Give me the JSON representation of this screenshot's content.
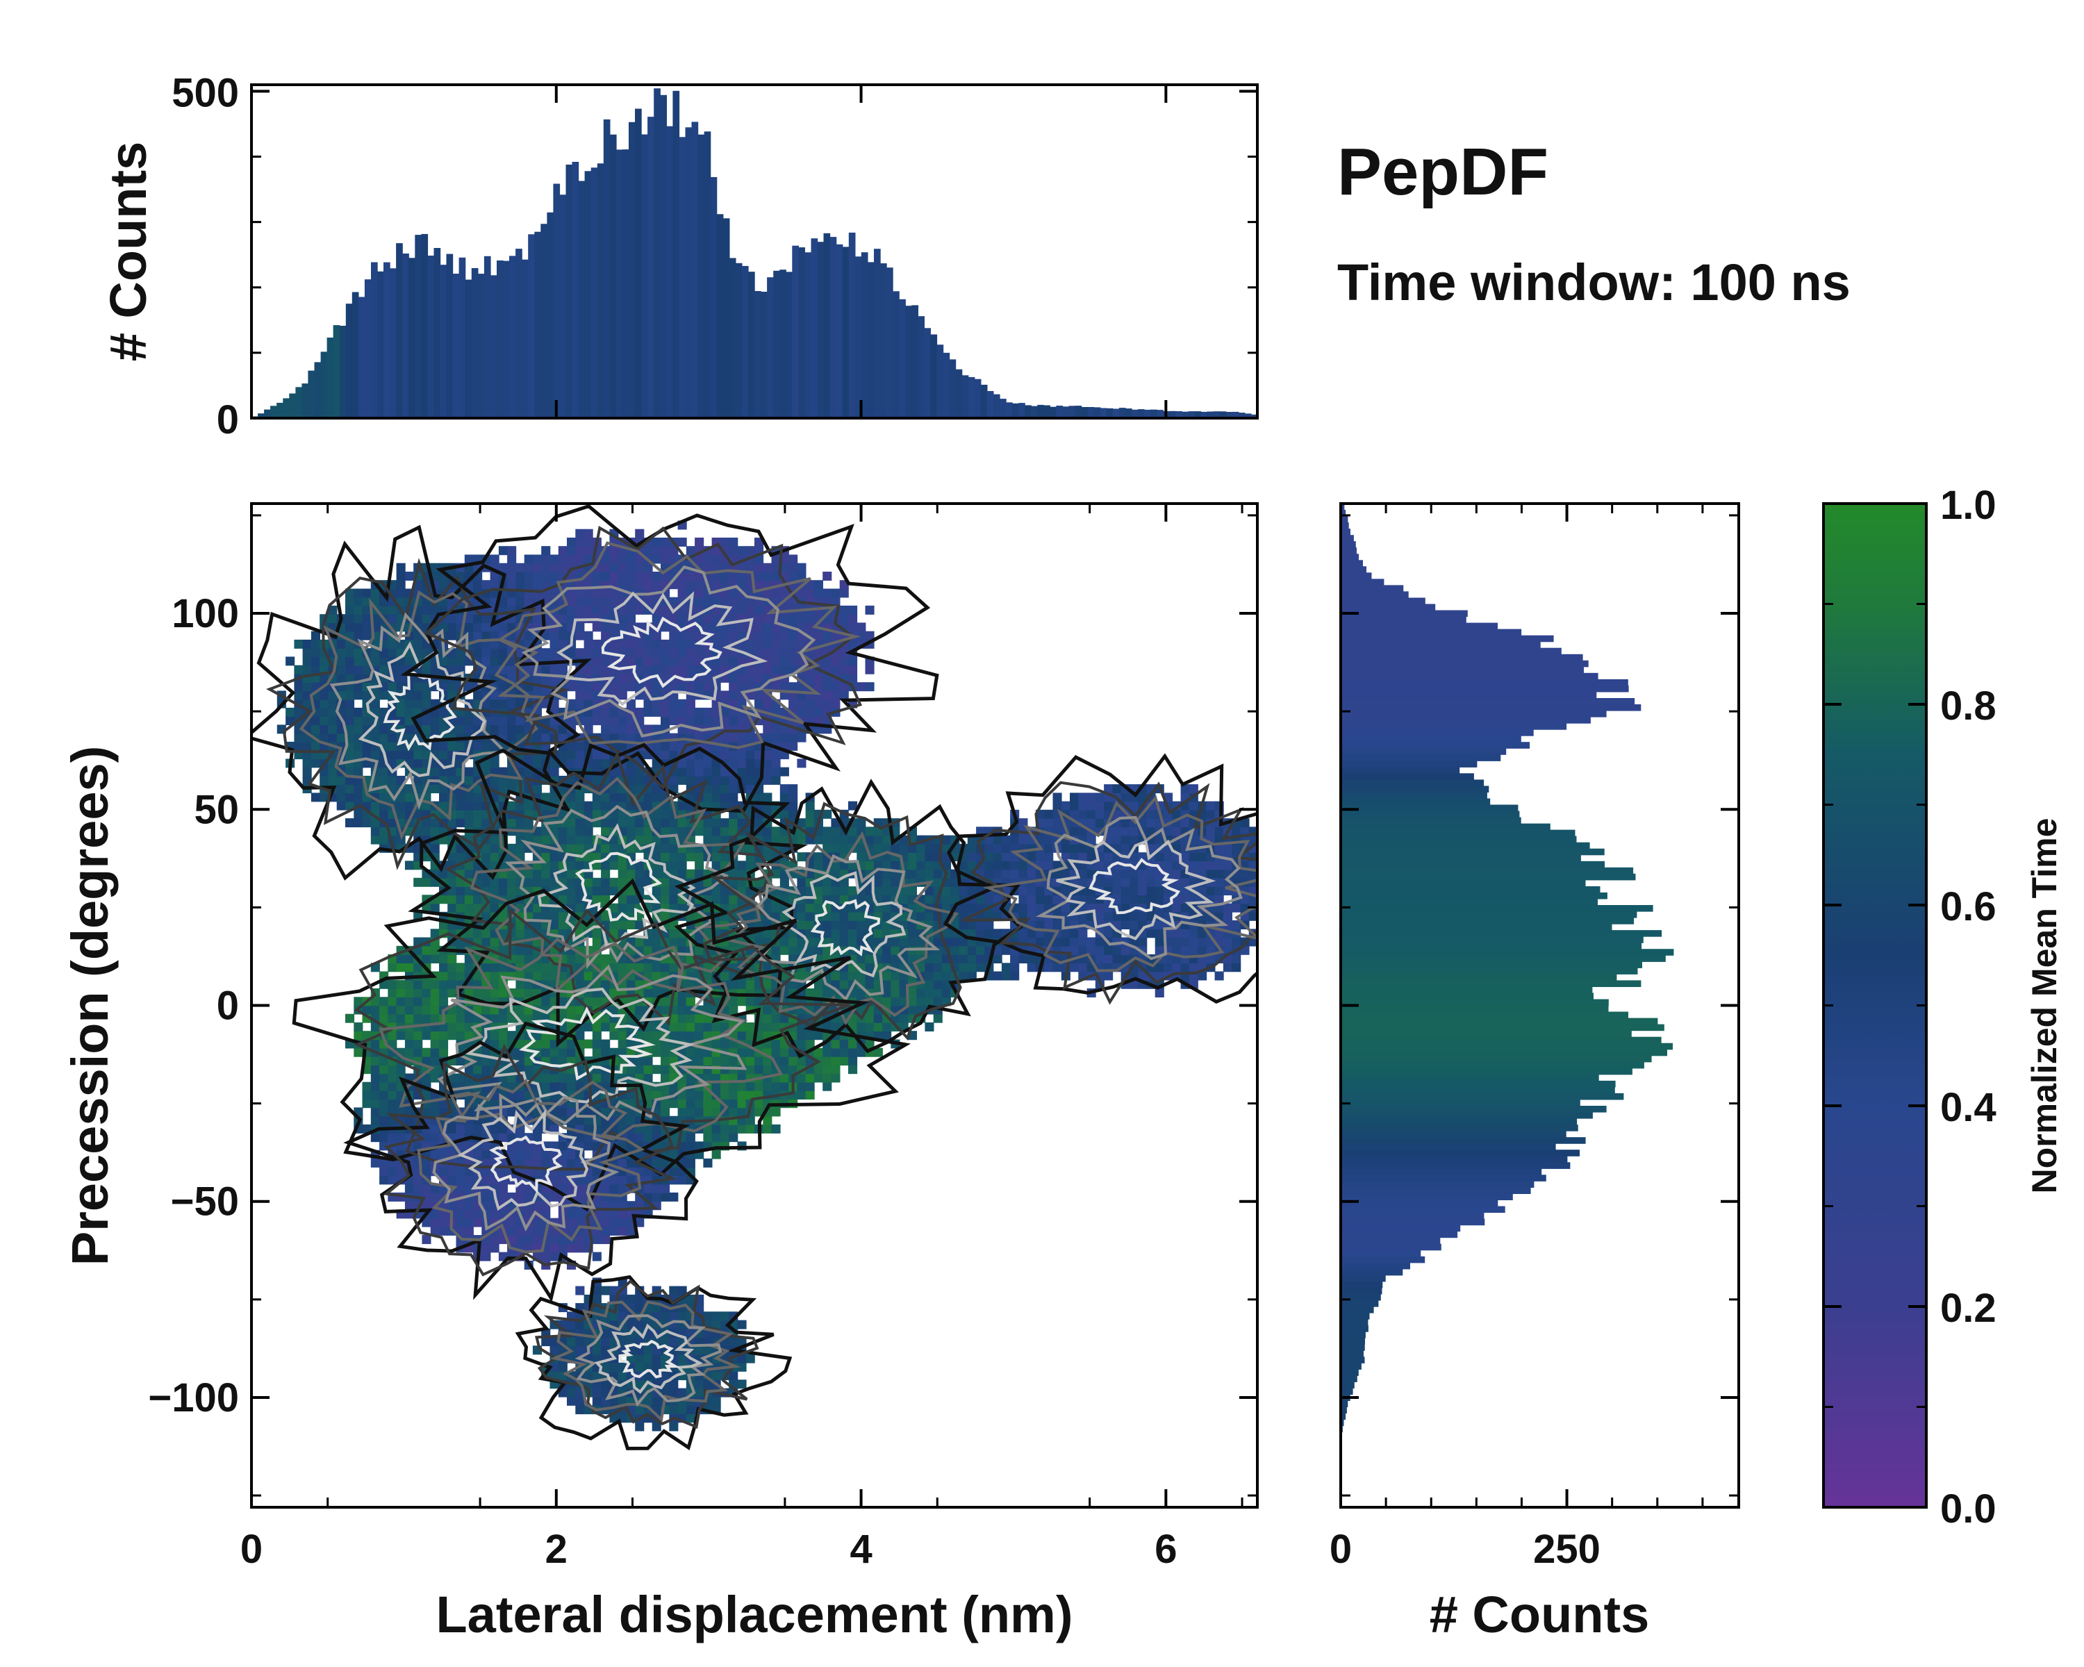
{
  "chart_data": [
    {
      "id": "main",
      "type": "heatmap",
      "title": "PepDF",
      "subtitle": "Time window: 100 ns",
      "xlabel": "Lateral displacement (nm)",
      "ylabel": "Precession (degrees)",
      "xlim": [
        0,
        6.6
      ],
      "ylim": [
        -128,
        128
      ],
      "xticks": [
        0,
        2,
        4,
        6
      ],
      "xtick_labels": [
        "0",
        "2",
        "4",
        "6"
      ],
      "yticks": [
        -100,
        -50,
        0,
        50,
        100
      ],
      "ytick_labels": [
        "−100",
        "−50",
        "0",
        "50",
        "100"
      ],
      "color_variable": "Normalized Mean Time",
      "regions": [
        {
          "name": "upper-left",
          "x": 1.1,
          "y": 75,
          "sx": 0.5,
          "sy": 20,
          "color_value": 0.65
        },
        {
          "name": "upper-center",
          "x": 2.7,
          "y": 90,
          "sx": 0.8,
          "sy": 18,
          "color_value": 0.3
        },
        {
          "name": "center",
          "x": 2.4,
          "y": 30,
          "sx": 0.6,
          "sy": 18,
          "color_value": 0.75
        },
        {
          "name": "center-right",
          "x": 3.9,
          "y": 20,
          "sx": 0.5,
          "sy": 16,
          "color_value": 0.7
        },
        {
          "name": "center-low",
          "x": 2.2,
          "y": -10,
          "sx": 0.9,
          "sy": 18,
          "color_value": 0.85
        },
        {
          "name": "lower-left",
          "x": 1.8,
          "y": -40,
          "sx": 0.5,
          "sy": 15,
          "color_value": 0.25
        },
        {
          "name": "right-lobe",
          "x": 5.8,
          "y": 30,
          "sx": 0.6,
          "sy": 15,
          "color_value": 0.45
        },
        {
          "name": "bottom-lobe",
          "x": 2.6,
          "y": -90,
          "sx": 0.4,
          "sy": 10,
          "color_value": 0.6
        }
      ]
    },
    {
      "id": "top-histogram",
      "type": "bar",
      "orientation": "vertical",
      "ylabel": "# Counts",
      "ylim": [
        0,
        510
      ],
      "yticks": [
        0,
        500
      ],
      "ytick_labels": [
        "0",
        "500"
      ],
      "x": [
        0.0,
        0.165,
        0.33,
        0.495,
        0.66,
        0.825,
        0.99,
        1.155,
        1.32,
        1.485,
        1.65,
        1.815,
        1.98,
        2.145,
        2.31,
        2.475,
        2.64,
        2.805,
        2.97,
        3.135,
        3.3,
        3.465,
        3.63,
        3.795,
        3.96,
        4.125,
        4.29,
        4.455,
        4.62,
        4.785,
        4.95,
        5.115,
        5.28,
        5.445,
        5.61,
        5.775,
        5.94,
        6.105,
        6.27,
        6.435,
        6.6
      ],
      "values": [
        0,
        20,
        50,
        110,
        175,
        230,
        260,
        270,
        230,
        225,
        240,
        255,
        330,
        380,
        420,
        450,
        480,
        470,
        430,
        270,
        200,
        220,
        260,
        275,
        270,
        245,
        185,
        125,
        80,
        55,
        25,
        20,
        18,
        18,
        16,
        14,
        12,
        10,
        10,
        10,
        5
      ]
    },
    {
      "id": "right-histogram",
      "type": "bar",
      "orientation": "horizontal",
      "xlabel": "# Counts",
      "xlim": [
        0,
        440
      ],
      "xticks": [
        0,
        250
      ],
      "xtick_labels": [
        "0",
        "250"
      ],
      "y": [
        -128,
        -120,
        -110,
        -100,
        -90,
        -80,
        -70,
        -60,
        -50,
        -40,
        -30,
        -20,
        -10,
        -5,
        0,
        5,
        10,
        15,
        20,
        25,
        30,
        40,
        50,
        55,
        60,
        70,
        75,
        80,
        90,
        100,
        110,
        120,
        128
      ],
      "values": [
        0,
        0,
        0,
        10,
        25,
        30,
        50,
        120,
        180,
        240,
        260,
        300,
        360,
        340,
        310,
        300,
        330,
        350,
        320,
        320,
        300,
        290,
        190,
        160,
        140,
        220,
        300,
        310,
        270,
        130,
        30,
        12,
        3
      ]
    },
    {
      "id": "colorbar",
      "type": "colorbar",
      "label": "Normalized Mean Time",
      "range": [
        0.0,
        1.0
      ],
      "ticks": [
        0.0,
        0.2,
        0.4,
        0.6,
        0.8,
        1.0
      ],
      "tick_labels": [
        "0.0",
        "0.2",
        "0.4",
        "0.6",
        "0.8",
        "1.0"
      ],
      "colormap": [
        "#663399",
        "#3b3f8f",
        "#29478e",
        "#1a3f73",
        "#155a66",
        "#1f7a3c",
        "#238a2a"
      ]
    }
  ]
}
